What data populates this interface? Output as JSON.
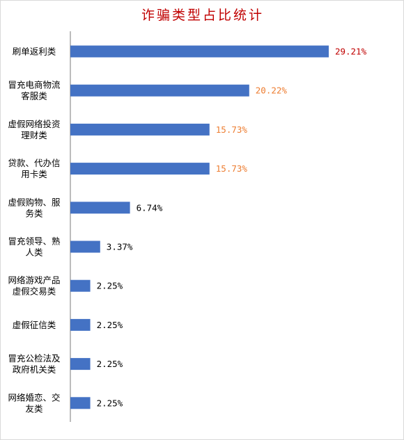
{
  "chart_data": {
    "type": "bar",
    "orientation": "horizontal",
    "title": "诈骗类型占比统计",
    "xlabel": "",
    "ylabel": "",
    "xlim": [
      0,
      100
    ],
    "grid": false,
    "legend": "none",
    "value_unit": "%",
    "categories": [
      [
        "刷单返利类"
      ],
      [
        "冒充电商物流",
        "客服类"
      ],
      [
        "虚假网络投资",
        "理财类"
      ],
      [
        "贷款、代办信",
        "用卡类"
      ],
      [
        "虚假购物、服",
        "务类"
      ],
      [
        "冒充领导、熟",
        "人类"
      ],
      [
        "网络游戏产品",
        "虚假交易类"
      ],
      [
        "虚假征信类"
      ],
      [
        "冒充公检法及",
        "政府机关类"
      ],
      [
        "网络婚恋、交",
        "友类"
      ]
    ],
    "values": [
      29.21,
      20.22,
      15.73,
      15.73,
      6.74,
      3.37,
      2.25,
      2.25,
      2.25,
      2.25
    ],
    "labels": [
      "29.21%",
      "20.22%",
      "15.73%",
      "15.73%",
      "6.74%",
      "3.37%",
      "2.25%",
      "2.25%",
      "2.25%",
      "2.25%"
    ],
    "label_colors": [
      "#c00000",
      "#ed7d31",
      "#ed7d31",
      "#ed7d31",
      "#000000",
      "#000000",
      "#000000",
      "#000000",
      "#000000",
      "#000000"
    ],
    "colors": {
      "bar": "#4472c4",
      "axis": "#a6a6a6",
      "title": "#c00000"
    }
  }
}
